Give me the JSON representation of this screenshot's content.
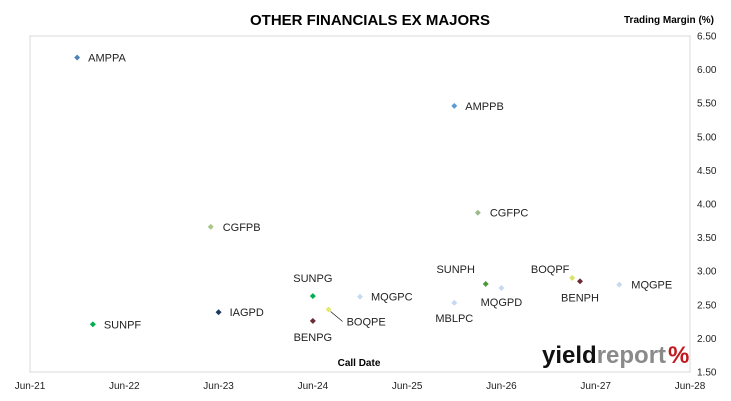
{
  "chart_data": {
    "type": "scatter",
    "title": "OTHER FINANCIALS EX MAJORS",
    "xlabel": "Call Date",
    "ylabel": "Trading Margin (%)",
    "x_ticks": [
      "Jun-21",
      "Jun-22",
      "Jun-23",
      "Jun-24",
      "Jun-25",
      "Jun-26",
      "Jun-27",
      "Jun-28"
    ],
    "y_ticks": [
      "1.50",
      "2.00",
      "2.50",
      "3.00",
      "3.50",
      "4.00",
      "4.50",
      "5.00",
      "5.50",
      "6.00",
      "6.50"
    ],
    "xlim": [
      "2021-06",
      "2028-06"
    ],
    "ylim": [
      1.5,
      6.5
    ],
    "grid": false,
    "y_axis_side": "right",
    "points": [
      {
        "label": "AMPPA",
        "x": "2021-12",
        "y": 6.18,
        "color": "#4f81bd"
      },
      {
        "label": "AMPPB",
        "x": "2025-12",
        "y": 5.46,
        "color": "#5b9bd5"
      },
      {
        "label": "CGFPC",
        "x": "2026-03",
        "y": 3.87,
        "color": "#9bbb8a"
      },
      {
        "label": "CGFPB",
        "x": "2023-05",
        "y": 3.66,
        "color": "#a9c68b"
      },
      {
        "label": "SUNPG",
        "x": "2024-06",
        "y": 2.63,
        "color": "#00b050"
      },
      {
        "label": "MQGPC",
        "x": "2024-12",
        "y": 2.62,
        "color": "#c6d9f1"
      },
      {
        "label": "SUNPH",
        "x": "2026-04",
        "y": 2.81,
        "color": "#4e9a3a"
      },
      {
        "label": "MQGPD",
        "x": "2026-06",
        "y": 2.75,
        "color": "#c6d9f1"
      },
      {
        "label": "MBLPC",
        "x": "2025-12",
        "y": 2.53,
        "color": "#c6d9f1"
      },
      {
        "label": "BOQPF",
        "x": "2027-03",
        "y": 2.9,
        "color": "#d8e36a"
      },
      {
        "label": "BENPH",
        "x": "2027-04",
        "y": 2.85,
        "color": "#6b2c33"
      },
      {
        "label": "MQGPE",
        "x": "2027-09",
        "y": 2.8,
        "color": "#c6d9f1"
      },
      {
        "label": "SUNPF",
        "x": "2022-02",
        "y": 2.21,
        "color": "#00b050"
      },
      {
        "label": "IAGPD",
        "x": "2023-06",
        "y": 2.39,
        "color": "#1f3864"
      },
      {
        "label": "BOQPE",
        "x": "2024-08",
        "y": 2.43,
        "color": "#e6e86a"
      },
      {
        "label": "BENPG",
        "x": "2024-06",
        "y": 2.26,
        "color": "#6b2c33"
      }
    ]
  },
  "brand": {
    "part1": "yield",
    "part2": "report",
    "part3": "%"
  }
}
